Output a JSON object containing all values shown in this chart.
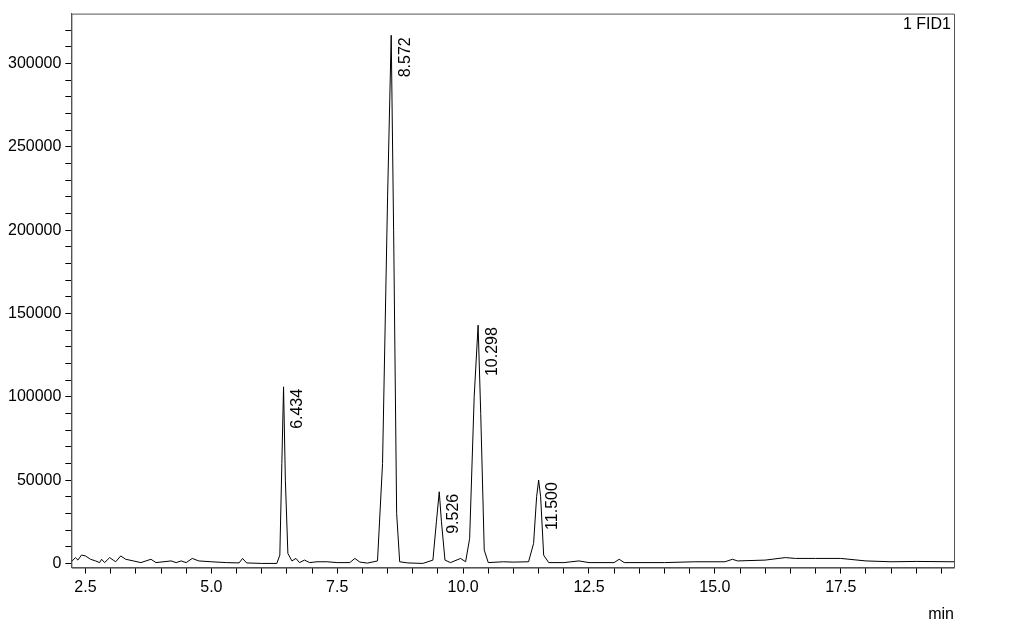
{
  "chart_data": {
    "type": "line",
    "xlabel": "min",
    "annotations": [
      "1 FID1",
      {
        "text": "6.434",
        "x": 6.434,
        "y": 106000
      },
      {
        "text": "8.572",
        "x": 8.572,
        "y": 317000
      },
      {
        "text": "9.526",
        "x": 9.526,
        "y": 43000
      },
      {
        "text": "10.298",
        "x": 10.298,
        "y": 143000
      },
      {
        "text": "11.500",
        "x": 11.5,
        "y": 50000
      }
    ],
    "x": [
      2.22,
      2.3,
      2.35,
      2.42,
      2.5,
      2.6,
      2.7,
      2.78,
      2.82,
      2.88,
      2.98,
      3.05,
      3.1,
      3.2,
      3.3,
      3.45,
      3.6,
      3.8,
      3.9,
      4.2,
      4.3,
      4.4,
      4.5,
      4.62,
      4.75,
      5.0,
      5.3,
      5.55,
      5.62,
      5.7,
      6.0,
      6.3,
      6.36,
      6.4,
      6.434,
      6.47,
      6.52,
      6.6,
      6.68,
      6.75,
      6.85,
      6.95,
      7.1,
      7.3,
      7.5,
      7.75,
      7.85,
      7.95,
      8.1,
      8.3,
      8.4,
      8.5,
      8.572,
      8.62,
      8.68,
      8.74,
      8.9,
      9.2,
      9.4,
      9.47,
      9.526,
      9.57,
      9.64,
      9.75,
      9.95,
      10.05,
      10.13,
      10.22,
      10.298,
      10.35,
      10.42,
      10.5,
      10.8,
      11.0,
      11.3,
      11.4,
      11.46,
      11.5,
      11.54,
      11.6,
      11.7,
      12.0,
      12.3,
      12.5,
      13.0,
      13.1,
      13.2,
      14.0,
      14.6,
      15.2,
      15.35,
      15.45,
      16.0,
      16.4,
      16.6,
      17.0,
      17.5,
      18.0,
      18.5,
      19.0,
      19.75
    ],
    "series": [
      {
        "color": "#000000",
        "values": [
          1000,
          3500,
          2000,
          5000,
          4500,
          2500,
          1500,
          500,
          2500,
          500,
          3500,
          2000,
          1000,
          4500,
          2500,
          1500,
          500,
          2500,
          500,
          1500,
          500,
          1500,
          500,
          3000,
          1500,
          1000,
          500,
          300,
          3000,
          300,
          0,
          0,
          5000,
          60000,
          106000,
          50000,
          6000,
          1500,
          3000,
          500,
          2000,
          500,
          1000,
          1000,
          500,
          500,
          3000,
          800,
          200,
          1500,
          60000,
          220000,
          317000,
          200000,
          30000,
          1000,
          300,
          0,
          2000,
          25000,
          43000,
          25000,
          2000,
          500,
          3000,
          1000,
          15000,
          100000,
          143000,
          90000,
          8000,
          500,
          1000,
          800,
          1000,
          12000,
          40000,
          50000,
          40000,
          5000,
          500,
          500,
          1500,
          500,
          500,
          2500,
          500,
          500,
          1000,
          1000,
          2500,
          1500,
          2000,
          3500,
          3000,
          3000,
          3000,
          1500,
          1000,
          1200,
          1000
        ]
      }
    ],
    "xlim": [
      2.22,
      19.75
    ],
    "xticks": [
      {
        "value": 2.5,
        "label": "2.5"
      },
      {
        "value": 3,
        "label": null
      },
      {
        "value": 3.5,
        "label": null
      },
      {
        "value": 4,
        "label": null
      },
      {
        "value": 4.5,
        "label": null
      },
      {
        "value": 5,
        "label": "5.0"
      },
      {
        "value": 5.5,
        "label": null
      },
      {
        "value": 6,
        "label": null
      },
      {
        "value": 6.5,
        "label": null
      },
      {
        "value": 7,
        "label": null
      },
      {
        "value": 7.5,
        "label": "7.5"
      },
      {
        "value": 8,
        "label": null
      },
      {
        "value": 8.5,
        "label": null
      },
      {
        "value": 9,
        "label": null
      },
      {
        "value": 9.5,
        "label": null
      },
      {
        "value": 10,
        "label": "10.0"
      },
      {
        "value": 10.5,
        "label": null
      },
      {
        "value": 11,
        "label": null
      },
      {
        "value": 11.5,
        "label": null
      },
      {
        "value": 12,
        "label": null
      },
      {
        "value": 12.5,
        "label": "12.5"
      },
      {
        "value": 13,
        "label": null
      },
      {
        "value": 13.5,
        "label": null
      },
      {
        "value": 14,
        "label": null
      },
      {
        "value": 14.5,
        "label": null
      },
      {
        "value": 15,
        "label": "15.0"
      },
      {
        "value": 15.5,
        "label": null
      },
      {
        "value": 16,
        "label": null
      },
      {
        "value": 16.5,
        "label": null
      },
      {
        "value": 17,
        "label": null
      },
      {
        "value": 17.5,
        "label": "17.5"
      },
      {
        "value": 18,
        "label": null
      },
      {
        "value": 18.5,
        "label": null
      },
      {
        "value": 19,
        "label": null
      },
      {
        "value": 19.5,
        "label": null
      }
    ],
    "ylim": [
      -2500,
      330000
    ],
    "yticks": [
      0,
      {
        "value": 10000,
        "label": null
      },
      {
        "value": 20000,
        "label": null
      },
      {
        "value": 30000,
        "label": null
      },
      {
        "value": 40000,
        "label": null
      },
      50000,
      {
        "value": 60000,
        "label": null
      },
      {
        "value": 70000,
        "label": null
      },
      {
        "value": 80000,
        "label": null
      },
      {
        "value": 90000,
        "label": null
      },
      100000,
      {
        "value": 110000,
        "label": null
      },
      {
        "value": 120000,
        "label": null
      },
      {
        "value": 130000,
        "label": null
      },
      {
        "value": 140000,
        "label": null
      },
      150000,
      {
        "value": 160000,
        "label": null
      },
      {
        "value": 170000,
        "label": null
      },
      {
        "value": 180000,
        "label": null
      },
      {
        "value": 190000,
        "label": null
      },
      200000,
      {
        "value": 210000,
        "label": null
      },
      {
        "value": 220000,
        "label": null
      },
      {
        "value": 230000,
        "label": null
      },
      {
        "value": 240000,
        "label": null
      },
      250000,
      {
        "value": 260000,
        "label": null
      },
      {
        "value": 270000,
        "label": null
      },
      {
        "value": 280000,
        "label": null
      },
      {
        "value": 290000,
        "label": null
      },
      300000,
      {
        "value": 310000,
        "label": null
      },
      {
        "value": 320000,
        "label": null
      }
    ],
    "grid": false,
    "legend": false,
    "marker": "none",
    "line_style": "solid"
  }
}
